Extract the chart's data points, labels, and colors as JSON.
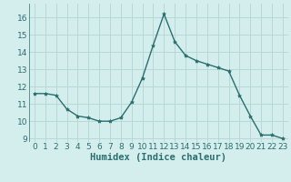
{
  "x": [
    0,
    1,
    2,
    3,
    4,
    5,
    6,
    7,
    8,
    9,
    10,
    11,
    12,
    13,
    14,
    15,
    16,
    17,
    18,
    19,
    20,
    21,
    22,
    23
  ],
  "y": [
    11.6,
    11.6,
    11.5,
    10.7,
    10.3,
    10.2,
    10.0,
    10.0,
    10.2,
    11.1,
    12.5,
    14.4,
    16.2,
    14.6,
    13.8,
    13.5,
    13.3,
    13.1,
    12.9,
    11.5,
    10.3,
    9.2,
    9.2,
    9.0
  ],
  "line_color": "#2a6e6e",
  "marker": "*",
  "marker_size": 3,
  "bg_color": "#d4eeee",
  "grid_color": "#b8d8d8",
  "xlabel": "Humidex (Indice chaleur)",
  "ylim": [
    8.8,
    16.8
  ],
  "xlim": [
    -0.5,
    23.5
  ],
  "yticks": [
    9,
    10,
    11,
    12,
    13,
    14,
    15,
    16
  ],
  "xticks": [
    0,
    1,
    2,
    3,
    4,
    5,
    6,
    7,
    8,
    9,
    10,
    11,
    12,
    13,
    14,
    15,
    16,
    17,
    18,
    19,
    20,
    21,
    22,
    23
  ],
  "tick_fontsize": 6.5,
  "xlabel_fontsize": 7.5,
  "line_width": 1.0
}
